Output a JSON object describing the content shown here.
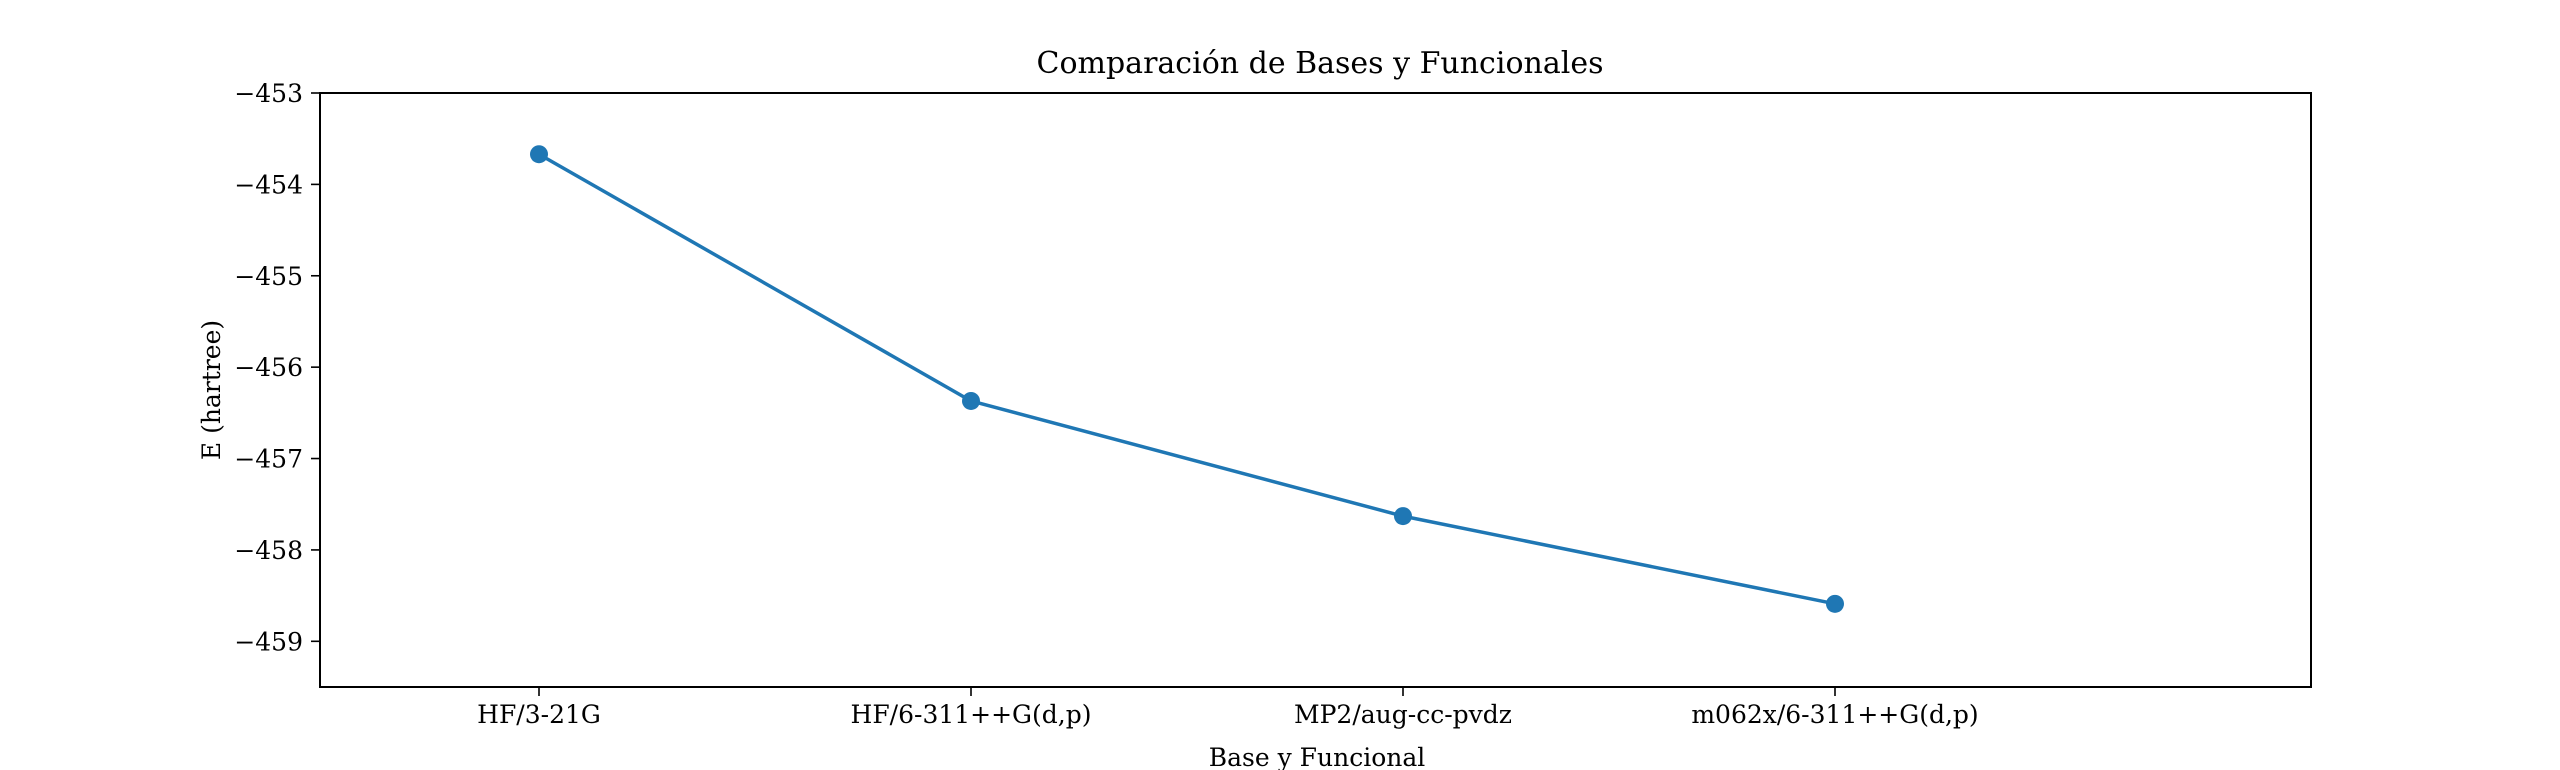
{
  "chart_data": {
    "type": "line",
    "title": "Comparación de Bases y Funcionales",
    "xlabel": "Base y Funcional",
    "ylabel": "E (hartree)",
    "categories": [
      "HF/3-21G",
      "HF/6-311++G(d,p)",
      "MP2/aug-cc-pvdz",
      "m062x/6-311++G(d,p)"
    ],
    "series": [
      {
        "values": [
          -453.67,
          -456.37,
          -457.63,
          -458.59
        ]
      }
    ],
    "ylim": [
      -459.5,
      -453.0
    ],
    "yticks": [
      -453,
      -454,
      -455,
      -456,
      -457,
      -458,
      -459
    ],
    "ytick_labels": [
      "−453",
      "−454",
      "−455",
      "−456",
      "−457",
      "−458",
      "−459"
    ],
    "grid": false,
    "legend": false,
    "colors": {
      "line": "#1f77b4",
      "axes": "#000000"
    }
  }
}
